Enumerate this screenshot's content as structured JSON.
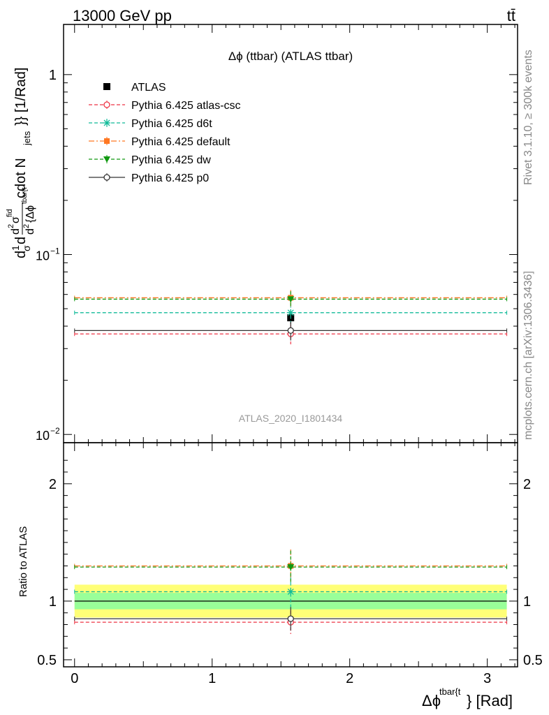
{
  "header": {
    "beam_label": "13000 GeV pp",
    "process_label": "tt̄"
  },
  "side_text": {
    "rivet": "Rivet 3.1.10, ≥ 300k events",
    "source": "mcplots.cern.ch [arXiv:1306.3436]"
  },
  "analysis_label": "ATLAS_2020_I1801434",
  "chart_data": [
    {
      "type": "scatter",
      "title": "Δϕ (ttbar) (ATLAS ttbar)",
      "ylabel": "d¹/σ d d²σᶠⁱᵈ / d²{Δϕᵗᵇᵃʳ{ᵗ} cdot N_jets}} [1/Rad]",
      "ylabel_parts": {
        "main": "d",
        "frac_top": "1",
        "frac_bot": "σ",
        "d1": "d",
        "dsig": "d",
        "sup2a": "2",
        "sigma": "σ",
        "fid": "fid",
        "den": "d",
        "den2": "2",
        "brace": "{Δϕ",
        "tb": "tbar{t",
        "cdot": "cdot N",
        "jets": "jets",
        "unit": "}} [1/Rad]"
      },
      "y_scale": "log",
      "ylim": [
        0.009,
        1.9
      ],
      "y_ticks": [
        {
          "value": 1,
          "label": "1"
        },
        {
          "value": 0.1,
          "label": "10",
          "exp": "−1"
        },
        {
          "value": 0.01,
          "label": "10",
          "exp": "−2"
        }
      ],
      "xlim": [
        -0.08,
        3.22
      ],
      "legend_position": "top-left",
      "series": [
        {
          "name": "ATLAS",
          "x": 1.571,
          "y": 0.0445,
          "err": 0.0035,
          "xerr": null,
          "color": "#000000",
          "marker": "square",
          "line": "none"
        },
        {
          "name": "Pythia 6.425 atlas-csc",
          "x": 1.571,
          "y": 0.0362,
          "err": 0.0045,
          "xerr": [
            0.0,
            3.1416
          ],
          "color": "#ee3344",
          "marker": "open-circle",
          "line": "dashed"
        },
        {
          "name": "Pythia 6.425 d6t",
          "x": 1.571,
          "y": 0.0475,
          "err": 0.0055,
          "xerr": [
            0.0,
            3.1416
          ],
          "color": "#11bb99",
          "marker": "star",
          "line": "dashed"
        },
        {
          "name": "Pythia 6.425 default",
          "x": 1.571,
          "y": 0.0575,
          "err": 0.006,
          "xerr": [
            0.0,
            3.1416
          ],
          "color": "#ff7722",
          "marker": "filled-square",
          "line": "dashdot"
        },
        {
          "name": "Pythia 6.425 dw",
          "x": 1.571,
          "y": 0.0565,
          "err": 0.006,
          "xerr": [
            0.0,
            3.1416
          ],
          "color": "#119911",
          "marker": "triangle-down",
          "line": "dashed"
        },
        {
          "name": "Pythia 6.425 p0",
          "x": 1.571,
          "y": 0.0378,
          "err": 0.0045,
          "xerr": [
            0.0,
            3.1416
          ],
          "color": "#333333",
          "marker": "open-circle",
          "line": "solid"
        }
      ]
    },
    {
      "type": "scatter",
      "ylabel": "Ratio to ATLAS",
      "xlabel": "Δϕ",
      "xlabel_sup": "tbar{t",
      "xlabel_tail": "} [Rad]",
      "ylim": [
        0.44,
        2.35
      ],
      "y_ticks": [
        0.5,
        1,
        2
      ],
      "x_ticks": [
        0,
        1,
        2,
        3
      ],
      "xlim": [
        -0.08,
        3.22
      ],
      "bands": [
        {
          "name": "total uncertainty",
          "lo": 0.86,
          "hi": 1.14,
          "color": "#ffff77"
        },
        {
          "name": "stat uncertainty",
          "lo": 0.93,
          "hi": 1.07,
          "color": "#99ff99"
        }
      ],
      "series": [
        {
          "name": "ATLAS",
          "y": 1.0,
          "color": "#000000",
          "line": "solid"
        },
        {
          "name": "Pythia 6.425 atlas-csc",
          "y": 0.82,
          "err": 0.1,
          "color": "#ee3344",
          "marker": "open-circle",
          "line": "dashed"
        },
        {
          "name": "Pythia 6.425 d6t",
          "y": 1.08,
          "err": 0.13,
          "color": "#11bb99",
          "marker": "star",
          "line": "dashed"
        },
        {
          "name": "Pythia 6.425 default",
          "y": 1.3,
          "err": 0.14,
          "color": "#ff7722",
          "marker": "filled-square",
          "line": "dashdot"
        },
        {
          "name": "Pythia 6.425 dw",
          "y": 1.29,
          "err": 0.14,
          "color": "#119911",
          "marker": "triangle-down",
          "line": "dashed"
        },
        {
          "name": "Pythia 6.425 p0",
          "y": 0.85,
          "err": 0.1,
          "color": "#333333",
          "marker": "open-circle",
          "line": "solid"
        }
      ],
      "x_point": 1.571
    }
  ]
}
